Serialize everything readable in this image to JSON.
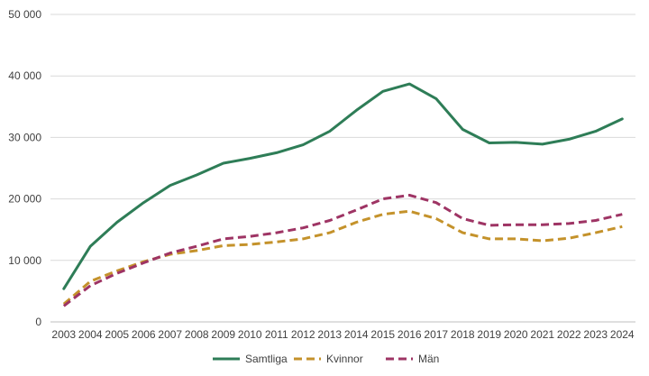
{
  "chart_data": {
    "type": "line",
    "x": [
      "2003",
      "2004",
      "2005",
      "2006",
      "2007",
      "2008",
      "2009",
      "2010",
      "2011",
      "2012",
      "2013",
      "2014",
      "2015",
      "2016",
      "2017",
      "2018",
      "2019",
      "2020",
      "2021",
      "2022",
      "2023",
      "2024"
    ],
    "ylim": [
      0,
      50000
    ],
    "yticks": [
      0,
      10000,
      20000,
      30000,
      40000,
      50000
    ],
    "ytick_labels": [
      "0",
      "10 000",
      "20 000",
      "30 000",
      "40 000",
      "50 000"
    ],
    "grid": true,
    "legend_position": "bottom",
    "series": [
      {
        "name": "Samtliga",
        "color": "#2e7d57",
        "dash": "solid",
        "values": [
          5400,
          12300,
          16200,
          19400,
          22200,
          23900,
          25800,
          26600,
          27500,
          28800,
          31000,
          34400,
          37500,
          38700,
          36300,
          31300,
          29100,
          29200,
          28900,
          29700,
          31000,
          33000
        ]
      },
      {
        "name": "Kvinnor",
        "color": "#c4922b",
        "dash": "dashed",
        "values": [
          2900,
          6600,
          8300,
          9800,
          11000,
          11600,
          12400,
          12600,
          13000,
          13500,
          14500,
          16200,
          17500,
          18000,
          16800,
          14500,
          13500,
          13500,
          13200,
          13600,
          14500,
          15500
        ]
      },
      {
        "name": "Män",
        "color": "#9e3464",
        "dash": "dashed",
        "values": [
          2600,
          5900,
          7900,
          9600,
          11200,
          12300,
          13500,
          13900,
          14500,
          15300,
          16500,
          18200,
          20000,
          20600,
          19400,
          16800,
          15700,
          15800,
          15800,
          16000,
          16500,
          17500
        ]
      }
    ]
  }
}
